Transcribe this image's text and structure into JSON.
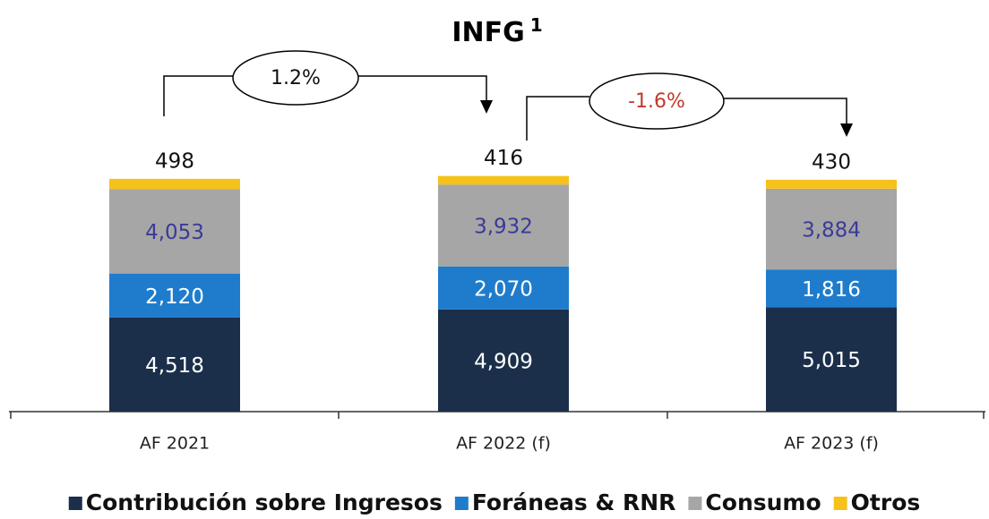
{
  "chart_data": {
    "type": "stacked_bar",
    "title": "INFG",
    "title_superscript": "1",
    "categories": [
      "AF 2021",
      "AF 2022 (f)",
      "AF 2023 (f)"
    ],
    "series": [
      {
        "name": "Contribución sobre Ingresos",
        "color": "#1b2f4b",
        "values": [
          4518,
          4909,
          5015
        ],
        "value_labels": [
          "4,518",
          "4,909",
          "5,015"
        ]
      },
      {
        "name": "Foráneas & RNR",
        "color": "#1f7ccc",
        "values": [
          2120,
          2070,
          1816
        ],
        "value_labels": [
          "2,120",
          "2,070",
          "1,816"
        ]
      },
      {
        "name": "Consumo",
        "color": "#a6a6a6",
        "values": [
          4053,
          3932,
          3884
        ],
        "value_labels": [
          "4,053",
          "3,932",
          "3,884"
        ]
      },
      {
        "name": "Otros",
        "color": "#f5c21b",
        "values": [
          498,
          416,
          430
        ]
      }
    ],
    "annotations": [
      "1.2%",
      "-1.6%"
    ],
    "ylim": [
      0,
      12000
    ]
  }
}
